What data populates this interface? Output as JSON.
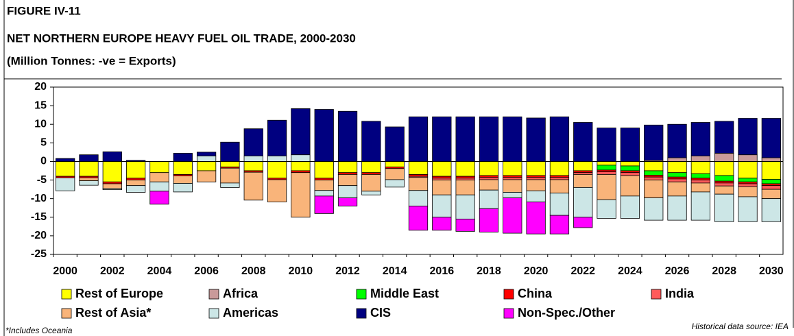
{
  "chart_data": {
    "type": "stacked_bar",
    "title": "FIGURE IV-11",
    "subtitle": "NET NORTHERN EUROPE HEAVY FUEL OIL TRADE, 2000-2030",
    "y_label": "(Million Tonnes: -ve = Exports)",
    "footnote": "*Includes Oceania",
    "source": "Historical data source: IEA",
    "categories": [
      "2000",
      null,
      "2002",
      null,
      "2004",
      null,
      "2006",
      null,
      "2008",
      null,
      "2010",
      null,
      "2012",
      null,
      "2014",
      null,
      "2016",
      null,
      "2018",
      null,
      "2020",
      null,
      "2022",
      null,
      "2024",
      null,
      "2026",
      null,
      "2028",
      null,
      "2030"
    ],
    "ylim": [
      -25,
      20
    ],
    "yticks": [
      20,
      15,
      10,
      5,
      0,
      -5,
      -10,
      -15,
      -20,
      -25
    ],
    "series": [
      {
        "name": "Rest of Europe",
        "color": "#ffff00",
        "values": [
          -4,
          -4,
          -5.5,
          -4.5,
          -3,
          -3.5,
          -2.5,
          -1.5,
          -2.5,
          -4.5,
          -2.5,
          -4.5,
          -3,
          -3,
          -1.5,
          -3.5,
          -4,
          -4,
          -3.8,
          -3.8,
          -3.8,
          -3.8,
          -2.5,
          -1,
          -1.2,
          -2.5,
          -3,
          -3.3,
          -3.8,
          -4.5,
          -4.8
        ]
      },
      {
        "name": "Africa",
        "color": "#c99a9a",
        "values": [
          0,
          0,
          0,
          0,
          0,
          0,
          0,
          0,
          0,
          0,
          0,
          0,
          0,
          0,
          0,
          0,
          0,
          0,
          0,
          0,
          0,
          0,
          0,
          0,
          0,
          0.3,
          1,
          1.5,
          2.2,
          1.8,
          1
        ]
      },
      {
        "name": "Middle East",
        "color": "#00ff00",
        "values": [
          0,
          0,
          0,
          0,
          0,
          0,
          0,
          0,
          0,
          0,
          0,
          0,
          0,
          0,
          0,
          0,
          0,
          0,
          0,
          0,
          0,
          0,
          0,
          -1.3,
          -1.3,
          -1.2,
          -1.2,
          -1.2,
          -1.5,
          -1,
          -1.2
        ]
      },
      {
        "name": "China",
        "color": "#ff0000",
        "values": [
          -0.4,
          -0.4,
          -0.5,
          -0.5,
          0,
          -0.4,
          0,
          -0.3,
          -0.4,
          -0.4,
          -0.5,
          -0.5,
          -0.5,
          -0.5,
          -0.4,
          -0.5,
          -0.5,
          -0.5,
          -0.5,
          -0.5,
          -0.5,
          -0.5,
          -0.5,
          -0.5,
          -0.5,
          -0.5,
          -0.5,
          -0.5,
          -0.5,
          -0.5,
          -0.5
        ]
      },
      {
        "name": "India",
        "color": "#ff5a5a",
        "values": [
          0,
          0,
          0,
          0,
          0,
          0,
          0,
          0,
          0,
          0,
          0,
          0,
          0,
          0,
          0,
          -0.3,
          -0.5,
          -0.5,
          -0.6,
          -0.6,
          -0.6,
          -0.6,
          -0.5,
          -0.7,
          -0.8,
          -0.8,
          -0.8,
          -0.8,
          -0.8,
          -0.8,
          -1
        ]
      },
      {
        "name": "Rest of Asia*",
        "color": "#f9b47a",
        "values": [
          0,
          -0.8,
          -1.3,
          -1.5,
          -2.5,
          -2,
          -3,
          -4,
          -7.5,
          -6,
          -12,
          -2.8,
          -3,
          -4.5,
          -3,
          -3.5,
          -4,
          -4,
          -2.8,
          -3.4,
          -3,
          -3.6,
          -3.5,
          -6.8,
          -5.5,
          -4.8,
          -3.8,
          -2.4,
          -2.2,
          -2.7,
          -2.5
        ]
      },
      {
        "name": "Americas",
        "color": "#cce6e6",
        "values": [
          -3.5,
          -1.2,
          -0.3,
          -1.8,
          -2.5,
          -2.3,
          1.5,
          -1.2,
          1.5,
          1.5,
          1.8,
          -1.5,
          -3.3,
          -1,
          -2,
          -4.2,
          -6,
          -6.5,
          -5,
          -1.5,
          -3,
          -6,
          -8,
          -5,
          -6,
          -6,
          -6.5,
          -7.6,
          -7.4,
          -6.7,
          -6.2
        ]
      },
      {
        "name": "CIS",
        "color": "#000080",
        "values": [
          0.8,
          1.8,
          2.6,
          0.3,
          0,
          2.2,
          1,
          5.2,
          7.3,
          9.6,
          12.4,
          14,
          13.5,
          10.8,
          9.3,
          12,
          12,
          12,
          12,
          12,
          11.7,
          12,
          10.5,
          9,
          9,
          9.5,
          9,
          9,
          8.6,
          9.8,
          10.6
        ]
      },
      {
        "name": "Non-Spec./Other",
        "color": "#ff00ff",
        "values": [
          0,
          0,
          0,
          0,
          -3.5,
          0,
          0,
          0,
          0,
          0,
          0,
          -4.7,
          -2.2,
          0,
          0,
          -6.5,
          -3.5,
          -3.3,
          -6.3,
          -9.5,
          -8.6,
          -5,
          -2.8,
          0,
          0,
          0,
          0,
          0,
          0,
          0,
          0
        ]
      }
    ]
  }
}
